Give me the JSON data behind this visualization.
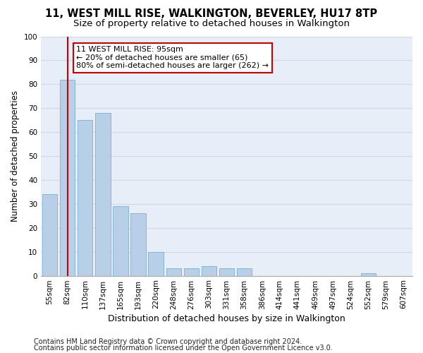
{
  "title": "11, WEST MILL RISE, WALKINGTON, BEVERLEY, HU17 8TP",
  "subtitle": "Size of property relative to detached houses in Walkington",
  "xlabel": "Distribution of detached houses by size in Walkington",
  "ylabel": "Number of detached properties",
  "categories": [
    "55sqm",
    "82sqm",
    "110sqm",
    "137sqm",
    "165sqm",
    "193sqm",
    "220sqm",
    "248sqm",
    "276sqm",
    "303sqm",
    "331sqm",
    "358sqm",
    "386sqm",
    "414sqm",
    "441sqm",
    "469sqm",
    "497sqm",
    "524sqm",
    "552sqm",
    "579sqm",
    "607sqm"
  ],
  "values": [
    34,
    82,
    65,
    68,
    29,
    26,
    10,
    3,
    3,
    4,
    3,
    3,
    0,
    0,
    0,
    0,
    0,
    0,
    1,
    0,
    0
  ],
  "bar_color": "#b8cfe8",
  "bar_edge_color": "#7aafd4",
  "vline_x": 1,
  "vline_color": "#cc0000",
  "annotation_text": "11 WEST MILL RISE: 95sqm\n← 20% of detached houses are smaller (65)\n80% of semi-detached houses are larger (262) →",
  "annotation_box_color": "#ffffff",
  "annotation_box_edge_color": "#cc0000",
  "ylim": [
    0,
    100
  ],
  "yticks": [
    0,
    10,
    20,
    30,
    40,
    50,
    60,
    70,
    80,
    90,
    100
  ],
  "grid_color": "#d0d8e8",
  "background_color": "#ffffff",
  "plot_bg_color": "#e8eef8",
  "footer_line1": "Contains HM Land Registry data © Crown copyright and database right 2024.",
  "footer_line2": "Contains public sector information licensed under the Open Government Licence v3.0.",
  "title_fontsize": 10.5,
  "subtitle_fontsize": 9.5,
  "xlabel_fontsize": 9,
  "ylabel_fontsize": 8.5,
  "annotation_fontsize": 8,
  "footer_fontsize": 7,
  "tick_fontsize": 7.5
}
